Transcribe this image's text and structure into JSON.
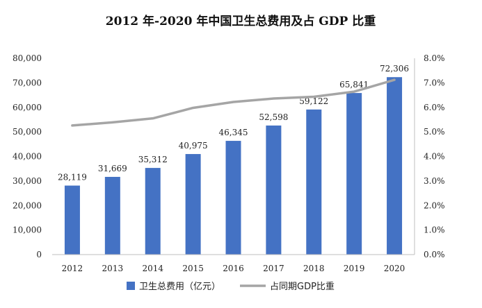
{
  "chart_data": {
    "type": "bar",
    "title": "2012 年-2020 年中国卫生总费用及占 GDP 比重",
    "categories": [
      "2012",
      "2013",
      "2014",
      "2015",
      "2016",
      "2017",
      "2018",
      "2019",
      "2020"
    ],
    "series": [
      {
        "name": "卫生总费用（亿元）",
        "type": "bar",
        "axis": "left",
        "color": "#4472C4",
        "values": [
          28119,
          31669,
          35312,
          40975,
          46345,
          52598,
          59122,
          65841,
          72306
        ],
        "labels": [
          "28,119",
          "31,669",
          "35,312",
          "40,975",
          "46,345",
          "52,598",
          "59,122",
          "65,841",
          "72,306"
        ]
      },
      {
        "name": "占同期GDP比重",
        "type": "line",
        "axis": "right",
        "color": "#A5A5A5",
        "values": [
          5.26,
          5.39,
          5.55,
          5.98,
          6.22,
          6.36,
          6.43,
          6.64,
          7.12
        ]
      }
    ],
    "y_left": {
      "ylim": [
        0,
        80000
      ],
      "ticks": [
        "0",
        "10,000",
        "20,000",
        "30,000",
        "40,000",
        "50,000",
        "60,000",
        "70,000",
        "80,000"
      ]
    },
    "y_right": {
      "ylim": [
        0,
        8
      ],
      "unit": "%",
      "ticks": [
        "0.0%",
        "1.0%",
        "2.0%",
        "3.0%",
        "4.0%",
        "5.0%",
        "6.0%",
        "7.0%",
        "8.0%"
      ]
    },
    "grid": false,
    "legend": "bottom"
  }
}
